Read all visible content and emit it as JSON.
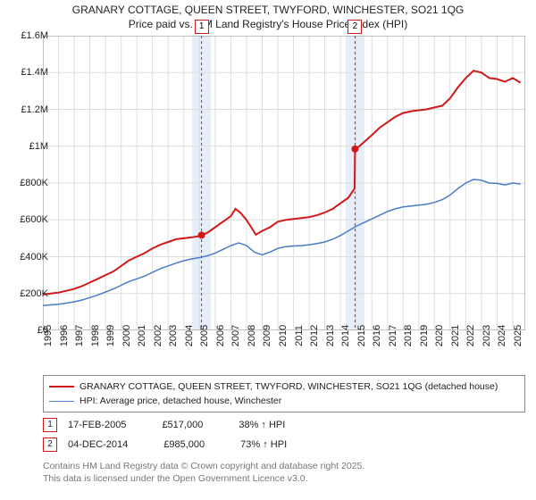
{
  "title_line1": "GRANARY COTTAGE, QUEEN STREET, TWYFORD, WINCHESTER, SO21 1QG",
  "title_line2": "Price paid vs. HM Land Registry's House Price Index (HPI)",
  "chart": {
    "type": "line",
    "background_color": "#ffffff",
    "grid_color": "#dddddd",
    "axis_color": "#888888",
    "ylim": [
      0,
      1600000
    ],
    "ytick_step": 200000,
    "ytick_labels": [
      "£0",
      "£200K",
      "£400K",
      "£600K",
      "£800K",
      "£1M",
      "£1.2M",
      "£1.4M",
      "£1.6M"
    ],
    "xlim": [
      1995,
      2025.8
    ],
    "xtick_step": 1,
    "xtick_labels": [
      "1995",
      "1996",
      "1997",
      "1998",
      "1999",
      "2000",
      "2001",
      "2002",
      "2003",
      "2004",
      "2005",
      "2006",
      "2007",
      "2008",
      "2009",
      "2010",
      "2011",
      "2012",
      "2013",
      "2014",
      "2015",
      "2016",
      "2017",
      "2018",
      "2019",
      "2020",
      "2021",
      "2022",
      "2023",
      "2024",
      "2025"
    ],
    "series": [
      {
        "name": "property",
        "label": "GRANARY COTTAGE, QUEEN STREET, TWYFORD, WINCHESTER, SO21 1QG (detached house)",
        "color": "#d11919",
        "line_width": 2,
        "points": [
          [
            1995.0,
            195000
          ],
          [
            1995.5,
            200000
          ],
          [
            1996.0,
            205000
          ],
          [
            1996.5,
            215000
          ],
          [
            1997.0,
            225000
          ],
          [
            1997.5,
            240000
          ],
          [
            1998.0,
            260000
          ],
          [
            1998.5,
            280000
          ],
          [
            1999.0,
            300000
          ],
          [
            1999.5,
            320000
          ],
          [
            2000.0,
            350000
          ],
          [
            2000.5,
            380000
          ],
          [
            2001.0,
            400000
          ],
          [
            2001.5,
            420000
          ],
          [
            2002.0,
            445000
          ],
          [
            2002.5,
            465000
          ],
          [
            2003.0,
            480000
          ],
          [
            2003.5,
            495000
          ],
          [
            2004.0,
            500000
          ],
          [
            2004.5,
            505000
          ],
          [
            2005.0,
            512000
          ],
          [
            2005.13,
            517000
          ],
          [
            2005.5,
            530000
          ],
          [
            2006.0,
            560000
          ],
          [
            2006.5,
            590000
          ],
          [
            2007.0,
            620000
          ],
          [
            2007.3,
            660000
          ],
          [
            2007.6,
            640000
          ],
          [
            2008.0,
            600000
          ],
          [
            2008.3,
            560000
          ],
          [
            2008.6,
            520000
          ],
          [
            2009.0,
            540000
          ],
          [
            2009.5,
            560000
          ],
          [
            2010.0,
            590000
          ],
          [
            2010.5,
            600000
          ],
          [
            2011.0,
            605000
          ],
          [
            2011.5,
            610000
          ],
          [
            2012.0,
            615000
          ],
          [
            2012.5,
            625000
          ],
          [
            2013.0,
            640000
          ],
          [
            2013.5,
            660000
          ],
          [
            2014.0,
            690000
          ],
          [
            2014.5,
            720000
          ],
          [
            2014.9,
            770000
          ],
          [
            2014.93,
            985000
          ],
          [
            2015.2,
            1000000
          ],
          [
            2015.6,
            1030000
          ],
          [
            2016.0,
            1060000
          ],
          [
            2016.5,
            1100000
          ],
          [
            2017.0,
            1130000
          ],
          [
            2017.5,
            1160000
          ],
          [
            2018.0,
            1180000
          ],
          [
            2018.5,
            1190000
          ],
          [
            2019.0,
            1195000
          ],
          [
            2019.5,
            1200000
          ],
          [
            2020.0,
            1210000
          ],
          [
            2020.5,
            1220000
          ],
          [
            2021.0,
            1260000
          ],
          [
            2021.5,
            1320000
          ],
          [
            2022.0,
            1370000
          ],
          [
            2022.5,
            1410000
          ],
          [
            2023.0,
            1400000
          ],
          [
            2023.5,
            1370000
          ],
          [
            2024.0,
            1365000
          ],
          [
            2024.5,
            1350000
          ],
          [
            2025.0,
            1370000
          ],
          [
            2025.5,
            1345000
          ]
        ]
      },
      {
        "name": "hpi",
        "label": "HPI: Average price, detached house, Winchester",
        "color": "#4a7bc8",
        "line_width": 1.5,
        "points": [
          [
            1995.0,
            135000
          ],
          [
            1995.5,
            138000
          ],
          [
            1996.0,
            142000
          ],
          [
            1996.5,
            148000
          ],
          [
            1997.0,
            155000
          ],
          [
            1997.5,
            165000
          ],
          [
            1998.0,
            178000
          ],
          [
            1998.5,
            192000
          ],
          [
            1999.0,
            208000
          ],
          [
            1999.5,
            225000
          ],
          [
            2000.0,
            245000
          ],
          [
            2000.5,
            265000
          ],
          [
            2001.0,
            280000
          ],
          [
            2001.5,
            295000
          ],
          [
            2002.0,
            315000
          ],
          [
            2002.5,
            335000
          ],
          [
            2003.0,
            350000
          ],
          [
            2003.5,
            365000
          ],
          [
            2004.0,
            378000
          ],
          [
            2004.5,
            388000
          ],
          [
            2005.0,
            395000
          ],
          [
            2005.5,
            405000
          ],
          [
            2006.0,
            420000
          ],
          [
            2006.5,
            440000
          ],
          [
            2007.0,
            460000
          ],
          [
            2007.5,
            475000
          ],
          [
            2008.0,
            460000
          ],
          [
            2008.5,
            425000
          ],
          [
            2009.0,
            410000
          ],
          [
            2009.5,
            425000
          ],
          [
            2010.0,
            445000
          ],
          [
            2010.5,
            455000
          ],
          [
            2011.0,
            458000
          ],
          [
            2011.5,
            460000
          ],
          [
            2012.0,
            465000
          ],
          [
            2012.5,
            472000
          ],
          [
            2013.0,
            480000
          ],
          [
            2013.5,
            495000
          ],
          [
            2014.0,
            515000
          ],
          [
            2014.5,
            540000
          ],
          [
            2015.0,
            565000
          ],
          [
            2015.5,
            585000
          ],
          [
            2016.0,
            605000
          ],
          [
            2016.5,
            625000
          ],
          [
            2017.0,
            645000
          ],
          [
            2017.5,
            660000
          ],
          [
            2018.0,
            670000
          ],
          [
            2018.5,
            675000
          ],
          [
            2019.0,
            680000
          ],
          [
            2019.5,
            685000
          ],
          [
            2020.0,
            695000
          ],
          [
            2020.5,
            710000
          ],
          [
            2021.0,
            735000
          ],
          [
            2021.5,
            770000
          ],
          [
            2022.0,
            800000
          ],
          [
            2022.5,
            820000
          ],
          [
            2023.0,
            815000
          ],
          [
            2023.5,
            800000
          ],
          [
            2024.0,
            798000
          ],
          [
            2024.5,
            790000
          ],
          [
            2025.0,
            800000
          ],
          [
            2025.5,
            795000
          ]
        ]
      }
    ],
    "markers": [
      {
        "id": "1",
        "x": 2005.13,
        "y": 517000,
        "line_color": "#d11919",
        "band_color": "#e6eef9",
        "band_width_years": 1.2
      },
      {
        "id": "2",
        "x": 2014.93,
        "y": 985000,
        "line_color": "#d11919",
        "band_color": "#e6eef9",
        "band_width_years": 1.2
      }
    ],
    "marker_point_color": "#d11919",
    "marker_point_radius": 4
  },
  "legend": {
    "border_color": "#888888",
    "items": [
      {
        "color": "#d11919",
        "width": 2,
        "label": "GRANARY COTTAGE, QUEEN STREET, TWYFORD, WINCHESTER, SO21 1QG (detached house)"
      },
      {
        "color": "#4a7bc8",
        "width": 1.5,
        "label": "HPI: Average price, detached house, Winchester"
      }
    ]
  },
  "data_table": {
    "rows": [
      {
        "marker_id": "1",
        "marker_color": "#d11919",
        "date": "17-FEB-2005",
        "price": "£517,000",
        "delta": "38% ↑ HPI"
      },
      {
        "marker_id": "2",
        "marker_color": "#d11919",
        "date": "04-DEC-2014",
        "price": "£985,000",
        "delta": "73% ↑ HPI"
      }
    ]
  },
  "footer_line1": "Contains HM Land Registry data © Crown copyright and database right 2025.",
  "footer_line2": "This data is licensed under the Open Government Licence v3.0."
}
